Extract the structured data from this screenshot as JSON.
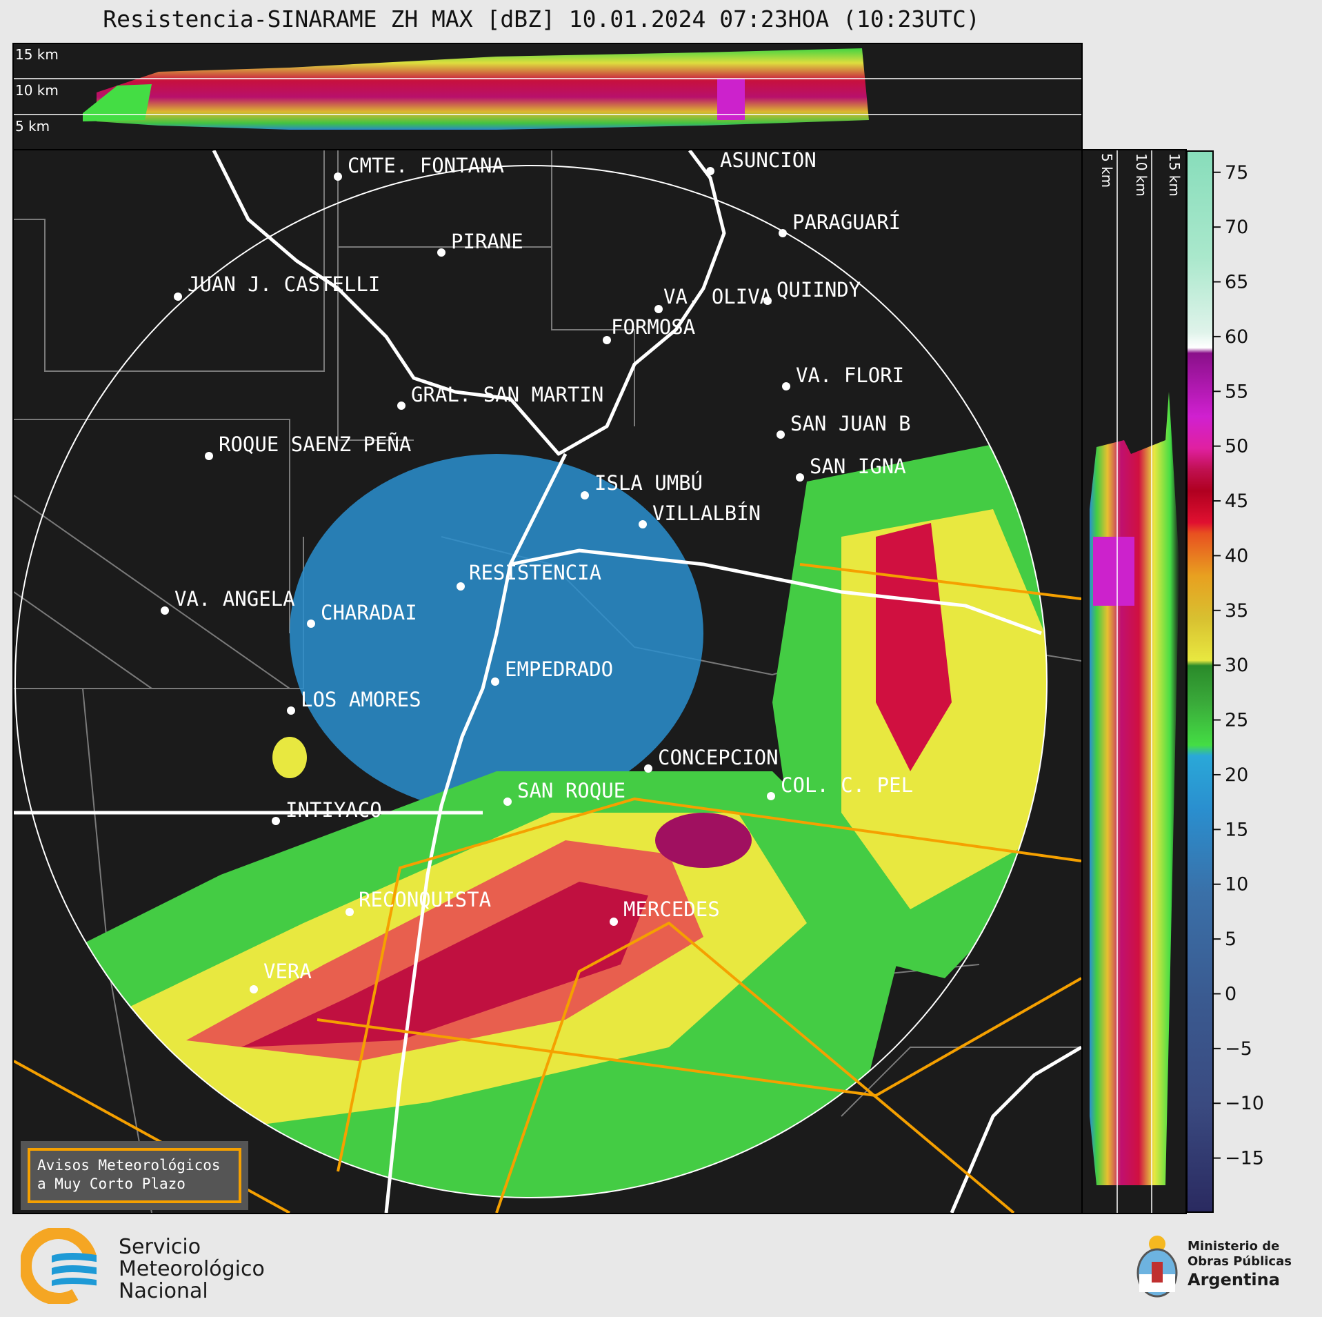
{
  "title": "Resistencia-SINARAME ZH MAX [dBZ] 10.01.2024 07:23HOA (10:23UTC)",
  "top_panel": {
    "km_labels": [
      "15 km",
      "10 km",
      "5 km"
    ]
  },
  "side_panel": {
    "km_labels": [
      "5 km",
      "10 km",
      "15 km"
    ]
  },
  "colorbar": {
    "ticks": [
      "75",
      "70",
      "65",
      "60",
      "55",
      "50",
      "45",
      "40",
      "35",
      "30",
      "25",
      "20",
      "15",
      "10",
      "5",
      "0",
      "−5",
      "−10",
      "−15"
    ],
    "range": [
      -20,
      77
    ],
    "unit": "dBZ"
  },
  "cities": [
    {
      "name": "CMTE. FONTANA"
    },
    {
      "name": "ASUNCIÓN"
    },
    {
      "name": "PARAGUARÍ"
    },
    {
      "name": "PIRANE"
    },
    {
      "name": "JUAN J. CASTELLI"
    },
    {
      "name": "VA. OLIVA"
    },
    {
      "name": "QUIINDY"
    },
    {
      "name": "FORMOSA"
    },
    {
      "name": "VA. FLORI"
    },
    {
      "name": "GRAL. SAN MARTIN"
    },
    {
      "name": "SAN JUAN B"
    },
    {
      "name": "ROQUE SAENZ PEÑA"
    },
    {
      "name": "SAN IGNA"
    },
    {
      "name": "ISLA UMBÚ"
    },
    {
      "name": "VILLALBÍN"
    },
    {
      "name": "RESISTENCIA"
    },
    {
      "name": "VA. ANGELA"
    },
    {
      "name": "CHARADAI"
    },
    {
      "name": "EMPEDRADO"
    },
    {
      "name": "LOS AMORES"
    },
    {
      "name": "CONCEPCION"
    },
    {
      "name": "SAN ROQUE"
    },
    {
      "name": "COL. C. PEL"
    },
    {
      "name": "INTIYACO"
    },
    {
      "name": "RECONQUISTA"
    },
    {
      "name": "MERCEDES"
    },
    {
      "name": "VERA"
    }
  ],
  "alert_box": {
    "line1": "Avisos Meteorológicos",
    "line2": "a Muy Corto Plazo"
  },
  "logo": {
    "line1": "Servicio",
    "line2": "Meteorológico",
    "line3": "Nacional"
  },
  "ministry": {
    "line1": "Ministerio de",
    "line2": "Obras Públicas",
    "line3": "Argentina"
  },
  "colors": {
    "background": "#1b1b1b",
    "border": "#ffffff",
    "province_lines": "#7a7a7a",
    "alert_lines": "#f5a000",
    "brand_orange": "#f5a623",
    "brand_blue": "#1e9ad6"
  }
}
